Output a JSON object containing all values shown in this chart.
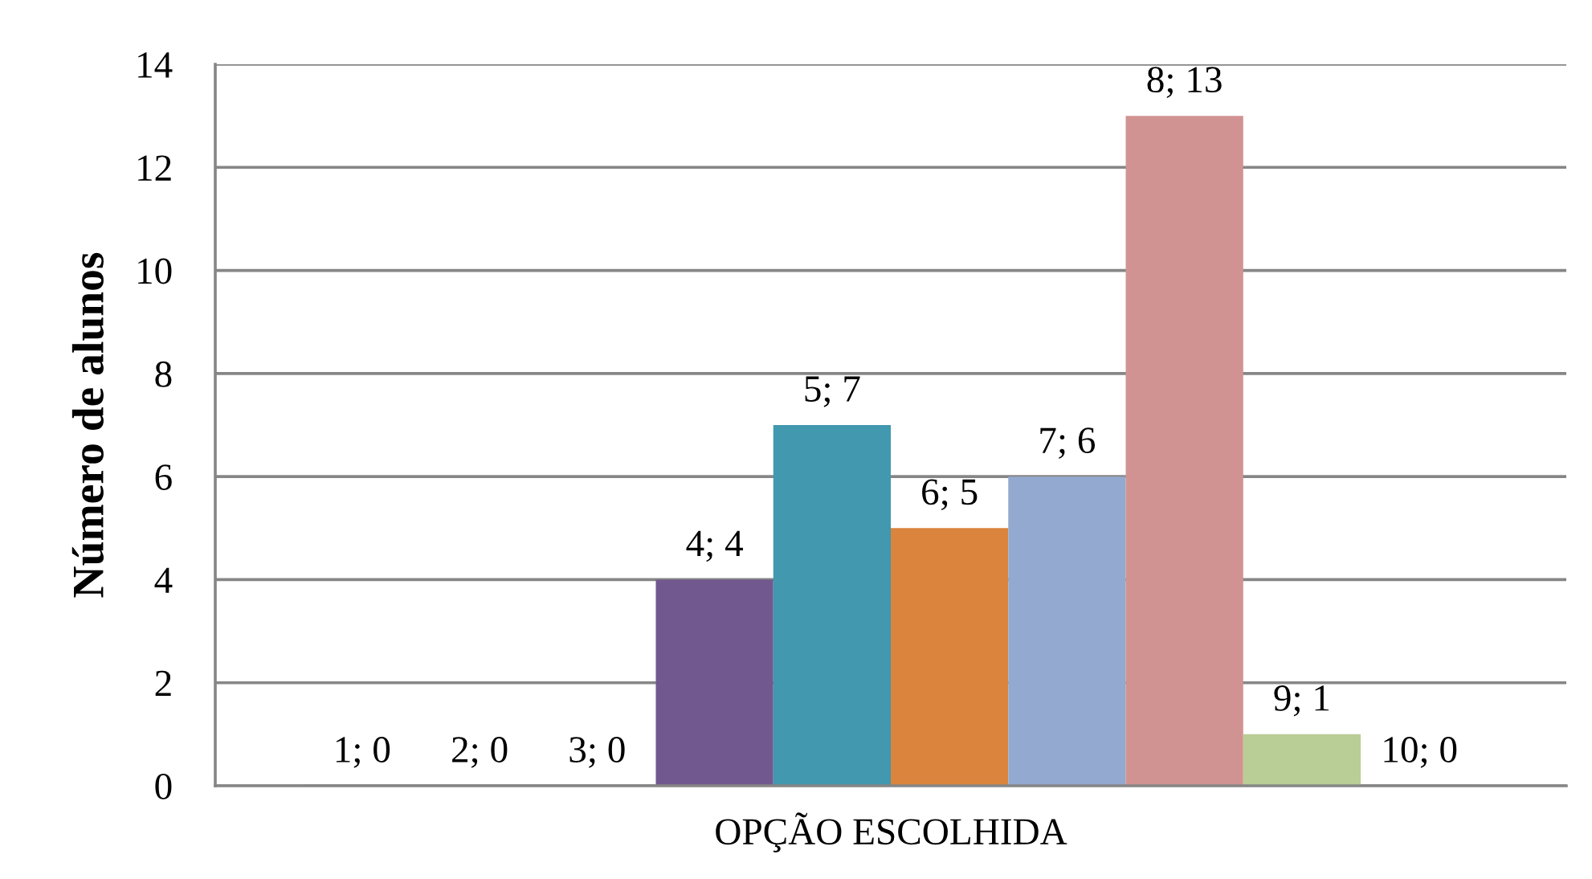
{
  "chart_data": {
    "type": "bar",
    "ylabel": "Número de alunos",
    "categories": [
      "OPÇÃO ESCOLHIDA"
    ],
    "series": [
      {
        "values": [
          0
        ],
        "value_labels": [
          "1; 0"
        ]
      },
      {
        "values": [
          0
        ],
        "value_labels": [
          "2; 0"
        ]
      },
      {
        "values": [
          0
        ],
        "value_labels": [
          "3; 0"
        ]
      },
      {
        "color": "#71588f",
        "values": [
          4
        ],
        "value_labels": [
          "4; 4"
        ]
      },
      {
        "color": "#4198af",
        "values": [
          7
        ],
        "value_labels": [
          "5; 7"
        ]
      },
      {
        "color": "#db843d",
        "values": [
          5
        ],
        "value_labels": [
          "6; 5"
        ]
      },
      {
        "color": "#93a9cf",
        "values": [
          6
        ],
        "value_labels": [
          "7; 6"
        ]
      },
      {
        "color": "#d19392",
        "values": [
          13
        ],
        "value_labels": [
          "8; 13"
        ]
      },
      {
        "color": "#b9cd96",
        "values": [
          1
        ],
        "value_labels": [
          "9; 1"
        ]
      },
      {
        "values": [
          0
        ],
        "value_labels": [
          "10; 0"
        ]
      }
    ],
    "ylim": [
      0,
      14
    ],
    "yticks": [
      0,
      2,
      4,
      6,
      8,
      10,
      12,
      14
    ],
    "grid": "y"
  }
}
